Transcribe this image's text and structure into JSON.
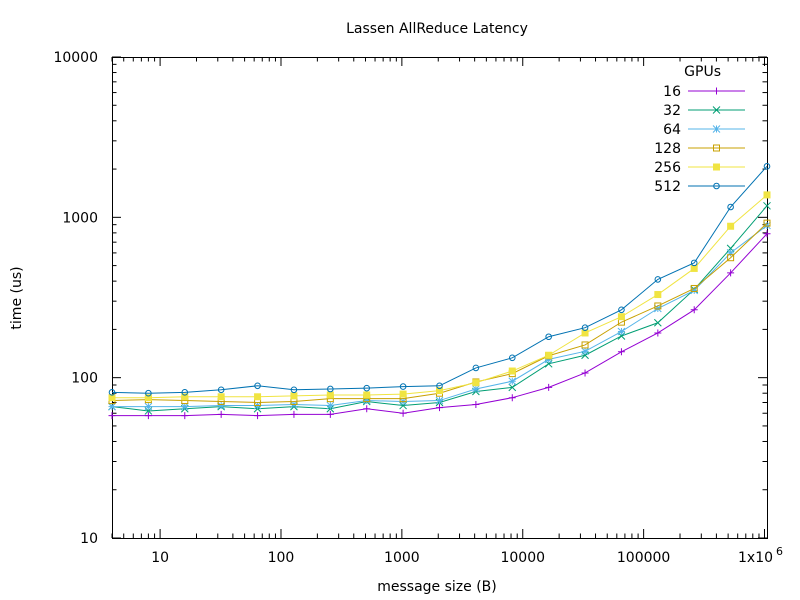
{
  "chart_data": {
    "type": "line",
    "title": "Lassen AllReduce Latency",
    "xlabel": "message size (B)",
    "ylabel": "time (us)",
    "x_scale": "log",
    "y_scale": "log",
    "xlim": [
      4,
      1048576
    ],
    "ylim": [
      10,
      10000
    ],
    "x_ticks": [
      {
        "value": 10,
        "label": "10"
      },
      {
        "value": 100,
        "label": "100"
      },
      {
        "value": 1000,
        "label": "1000"
      },
      {
        "value": 10000,
        "label": "10000"
      },
      {
        "value": 100000,
        "label": "100000"
      },
      {
        "value": 1000000,
        "label": "1x10",
        "superscript": "6"
      }
    ],
    "y_ticks": [
      {
        "value": 10,
        "label": "10"
      },
      {
        "value": 100,
        "label": "100"
      },
      {
        "value": 1000,
        "label": "1000"
      },
      {
        "value": 10000,
        "label": "10000"
      }
    ],
    "legend_title": "GPUs",
    "legend_position": "top-right",
    "grid": false,
    "x": [
      4,
      8,
      16,
      32,
      64,
      128,
      256,
      512,
      1024,
      2048,
      4096,
      8192,
      16384,
      32768,
      65536,
      131072,
      262144,
      524288,
      1048576
    ],
    "series": [
      {
        "name": "16",
        "color": "#9400d3",
        "marker": "plus",
        "values": [
          58,
          58,
          58,
          59,
          58,
          59,
          59,
          64,
          60,
          65,
          68,
          75,
          87,
          107,
          145,
          190,
          265,
          450,
          790
        ]
      },
      {
        "name": "32",
        "color": "#009e73",
        "marker": "x",
        "values": [
          66,
          62,
          64,
          66,
          64,
          66,
          64,
          71,
          67,
          70,
          82,
          87,
          122,
          138,
          182,
          220,
          355,
          640,
          1180
        ]
      },
      {
        "name": "64",
        "color": "#56b4e9",
        "marker": "star",
        "values": [
          66,
          66,
          66,
          67,
          67,
          68,
          67,
          72,
          71,
          72,
          85,
          95,
          130,
          146,
          194,
          270,
          350,
          600,
          890
        ]
      },
      {
        "name": "128",
        "color": "#c8a000",
        "marker": "open-square",
        "values": [
          72,
          73,
          72,
          71,
          70,
          71,
          74,
          74,
          74,
          80,
          94,
          106,
          137,
          160,
          222,
          280,
          360,
          560,
          920
        ]
      },
      {
        "name": "256",
        "color": "#f0e442",
        "marker": "filled-square",
        "values": [
          75,
          75,
          76,
          76,
          76,
          77,
          78,
          78,
          79,
          83,
          93,
          110,
          138,
          190,
          240,
          330,
          480,
          880,
          1380
        ]
      },
      {
        "name": "512",
        "color": "#0072b2",
        "marker": "circle",
        "values": [
          81,
          80,
          81,
          84,
          89,
          84,
          85,
          86,
          88,
          89,
          115,
          133,
          180,
          205,
          265,
          410,
          520,
          1160,
          2080
        ]
      }
    ]
  }
}
